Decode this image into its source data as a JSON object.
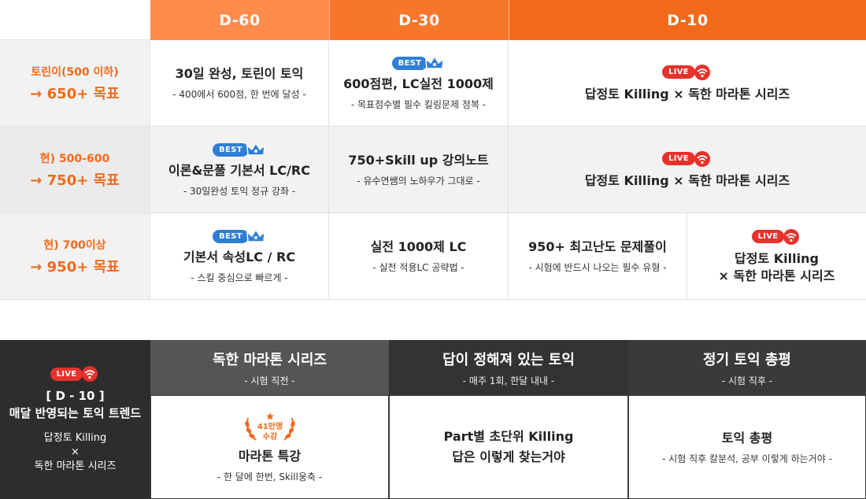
{
  "colors": {
    "header_d60": "#ff8c4b",
    "header_d30": "#f8762b",
    "header_d10": "#f06a1a",
    "accent_orange": "#f06a1a",
    "best_blue": "#2f7fd6",
    "live_red": "#e6322b",
    "dark_panel": "#2d2d2d",
    "mid_panel": "#555555"
  },
  "header": {
    "d60": "D-60",
    "d30": "D-30",
    "d10": "D-10"
  },
  "rows": [
    {
      "label_a": "토린이(500 이하)",
      "label_b": "→ 650+ 목표",
      "d60": {
        "title": "30일 완성, 토린이 토익",
        "sub": "-  400에서 600점, 한 번에 달성 -"
      },
      "d30": {
        "badge": "BEST",
        "title": "600점편, LC실전 1000제",
        "sub": "- 목표점수별 필수 킬링문제 정복 -"
      },
      "d10": {
        "badge": "LIVE",
        "title": "답정토 Killing × 독한 마라톤 시리즈"
      }
    },
    {
      "label_a": "현) 500-600",
      "label_b": "→ 750+ 목표",
      "d60": {
        "badge": "BEST",
        "title": "이론&문풀 기본서 LC/RC",
        "sub": "-  30일완성 토익 정규 강좌 -"
      },
      "d30": {
        "title": "750+Skill up 강의노트",
        "sub": "- 유수연쌤의 노하우가 그대로 -"
      },
      "d10": {
        "badge": "LIVE",
        "title": "답정토 Killing × 독한 마라톤 시리즈"
      }
    },
    {
      "label_a": "현) 700이상",
      "label_b": "→ 950+ 목표",
      "d60": {
        "badge": "BEST",
        "title": "기본서 속성LC / RC",
        "sub": "- 스킬 중심으로 빠르게 -"
      },
      "d30": {
        "title": "실전 1000제 LC",
        "sub": "- 실전 적용LC 공략법 -"
      },
      "d10a": {
        "title": "950+ 최고난도 문제풀이",
        "sub": "- 시험에 반드시 나오는 필수 유형 -"
      },
      "d10b": {
        "badge": "LIVE",
        "title1": "답정토 Killing",
        "title2": "× 독한 마라톤 시리즈"
      }
    }
  ],
  "bottom": {
    "left": {
      "badge": "LIVE",
      "title1": "[ D - 10 ]",
      "title2": "매달 반영되는 토익 트렌드",
      "line1": "답정토 Killing",
      "line2": "×",
      "line3": "독한 마라톤 시리즈"
    },
    "cols": [
      {
        "head": "독한 마라톤 시리즈",
        "head_sub": "- 시험 직전 -",
        "badge1": "41만명",
        "badge2": "수강",
        "title": "마라톤 특강",
        "sub": "- 한 달에 한번, Skill웅축 -"
      },
      {
        "head": "답이 정해져 있는 토익",
        "head_sub": "- 매주 1회, 한달 내내 -",
        "title1": "Part별 초단위 Killing",
        "title2": "답은 이렇게 찾는거야"
      },
      {
        "head": "정기 토익 총평",
        "head_sub": "- 시험 직후 -",
        "title": "토익 총평",
        "sub": "- 시험 직후 칼분석, 공부 이렇게 하는거야 -"
      }
    ]
  }
}
